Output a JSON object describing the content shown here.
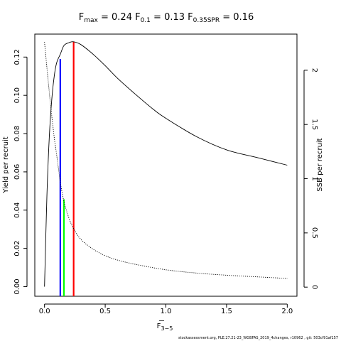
{
  "chart_data": {
    "type": "line",
    "title": {
      "fmax_sub": "max",
      "fmax_value": "0.24",
      "f01_sub": "0.1",
      "f01_value": "0.13",
      "fspr_sub": "0.35SPR",
      "fspr_value": "0.16"
    },
    "xlabel_base": "F",
    "xlabel_sub": "3−5",
    "ylabel": "Yield per recruit",
    "y2label": "SSB per recruit",
    "xlim": [
      -0.08,
      2.08
    ],
    "ylim": [
      -0.005,
      0.132
    ],
    "y2lim": [
      -0.084,
      2.3333
    ],
    "x_ticks": [
      "0.0",
      "0.5",
      "1.0",
      "1.5",
      "2.0"
    ],
    "y_ticks": [
      "0.00",
      "0.02",
      "0.04",
      "0.06",
      "0.08",
      "0.10",
      "0.12"
    ],
    "y2_ticks": [
      "0",
      "0.5",
      "1",
      "1.5",
      "2"
    ],
    "series": [
      {
        "role": "yield",
        "style": "solid",
        "x": [
          0.0,
          0.02,
          0.04,
          0.06,
          0.08,
          0.1,
          0.13,
          0.16,
          0.2,
          0.24,
          0.3,
          0.4,
          0.5,
          0.6,
          0.75,
          0.9,
          1.0,
          1.25,
          1.5,
          1.75,
          2.0
        ],
        "y": [
          0.0,
          0.048,
          0.079,
          0.098,
          0.11,
          0.117,
          0.1215,
          0.126,
          0.1275,
          0.128,
          0.1265,
          0.1215,
          0.1155,
          0.109,
          0.1005,
          0.0925,
          0.088,
          0.0785,
          0.0715,
          0.0675,
          0.0635
        ]
      },
      {
        "role": "ssb",
        "style": "dotted",
        "x": [
          0.0,
          0.02,
          0.05,
          0.08,
          0.1,
          0.13,
          0.16,
          0.2,
          0.24,
          0.3,
          0.4,
          0.5,
          0.6,
          0.75,
          1.0,
          1.25,
          1.5,
          1.75,
          2.0
        ],
        "y": [
          2.26,
          2.02,
          1.68,
          1.38,
          1.22,
          0.97,
          0.79,
          0.64,
          0.54,
          0.44,
          0.35,
          0.29,
          0.25,
          0.21,
          0.16,
          0.13,
          0.11,
          0.095,
          0.08
        ]
      }
    ],
    "reference_lines": [
      {
        "name": "F0.1",
        "x": 0.13,
        "y_top": 0.119,
        "axis": "yield",
        "color": "#0000ff"
      },
      {
        "name": "Fmax",
        "x": 0.24,
        "y_top": 0.128,
        "axis": "yield",
        "color": "#ff0000"
      },
      {
        "name": "F0.35SPR",
        "x": 0.16,
        "y_top": 0.81,
        "axis": "ssb",
        "color": "#00ff00"
      }
    ]
  },
  "footer": "stockassessment.org, PLE.27.21-23_WGBFAS_2019_4changes, r10962 , git: 503cf91af157"
}
